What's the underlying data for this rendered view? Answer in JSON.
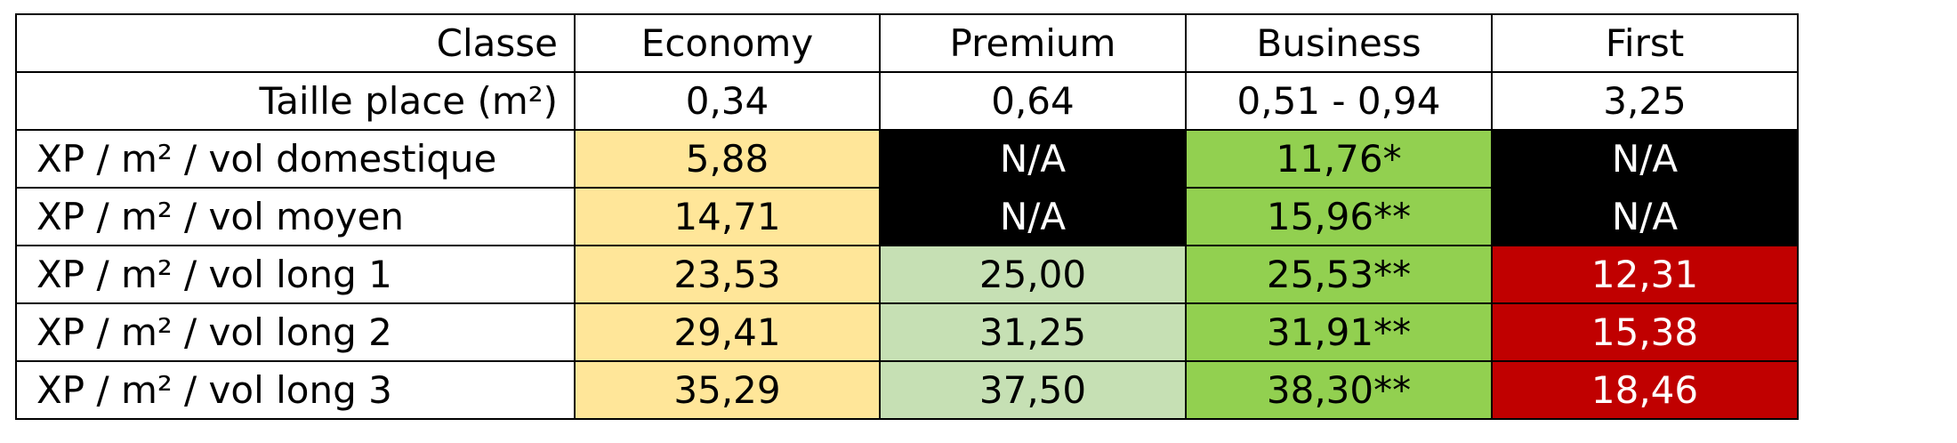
{
  "table": {
    "columns": [
      "Classe",
      "Economy",
      "Premium",
      "Business",
      "First"
    ],
    "rows": [
      {
        "label": "Taille place (m²)",
        "cells": [
          {
            "text": "0,34",
            "fill": "white"
          },
          {
            "text": "0,64",
            "fill": "white"
          },
          {
            "text": "0,51 - 0,94",
            "fill": "white"
          },
          {
            "text": "3,25",
            "fill": "white"
          }
        ]
      },
      {
        "label": "XP / m² / vol domestique",
        "cells": [
          {
            "text": "5,88",
            "fill": "yellow"
          },
          {
            "text": "N/A",
            "fill": "black"
          },
          {
            "text": "11,76*",
            "fill": "green"
          },
          {
            "text": "N/A",
            "fill": "black"
          }
        ]
      },
      {
        "label": "XP / m² / vol moyen",
        "cells": [
          {
            "text": "14,71",
            "fill": "yellow"
          },
          {
            "text": "N/A",
            "fill": "black"
          },
          {
            "text": "15,96**",
            "fill": "green"
          },
          {
            "text": "N/A",
            "fill": "black"
          }
        ]
      },
      {
        "label": "XP / m² / vol long 1",
        "cells": [
          {
            "text": "23,53",
            "fill": "yellow"
          },
          {
            "text": "25,00",
            "fill": "lightgreen"
          },
          {
            "text": "25,53**",
            "fill": "green"
          },
          {
            "text": "12,31",
            "fill": "red"
          }
        ]
      },
      {
        "label": "XP / m² / vol long 2",
        "cells": [
          {
            "text": "29,41",
            "fill": "yellow"
          },
          {
            "text": "31,25",
            "fill": "lightgreen"
          },
          {
            "text": "31,91**",
            "fill": "green"
          },
          {
            "text": "15,38",
            "fill": "red"
          }
        ]
      },
      {
        "label": "XP / m² / vol long 3",
        "cells": [
          {
            "text": "35,29",
            "fill": "yellow"
          },
          {
            "text": "37,50",
            "fill": "lightgreen"
          },
          {
            "text": "38,30**",
            "fill": "green"
          },
          {
            "text": "18,46",
            "fill": "red"
          }
        ]
      }
    ]
  },
  "colors": {
    "white": "#ffffff",
    "yellow": "#ffe699",
    "black": "#000000",
    "lightgreen": "#c6e0b4",
    "green": "#92d050",
    "red": "#c00000"
  }
}
